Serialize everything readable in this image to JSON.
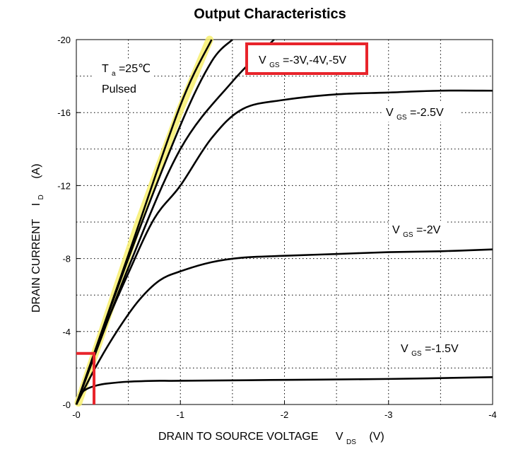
{
  "chart_data": {
    "type": "line",
    "title": "Output Characteristics",
    "xlabel": "DRAIN TO SOURCE VOLTAGE",
    "xlabel_symbol": "V",
    "xlabel_sub": "DS",
    "xlabel_unit": "(V)",
    "ylabel": "DRAIN CURRENT",
    "ylabel_symbol": "I",
    "ylabel_sub": "D",
    "ylabel_unit": "(A)",
    "xlim": [
      0,
      -4
    ],
    "ylim": [
      0,
      -20
    ],
    "x_ticks": [
      0,
      -1,
      -2,
      -3,
      -4
    ],
    "x_tick_labels": [
      "-0",
      "-1",
      "-2",
      "-3",
      "-4"
    ],
    "y_ticks": [
      0,
      -4,
      -8,
      -12,
      -16,
      -20
    ],
    "y_tick_labels": [
      "-0",
      "-4",
      "-8",
      "-12",
      "-16",
      "-20"
    ],
    "grid": "dotted",
    "conditions": {
      "ta_symbol": "T",
      "ta_sub": "a",
      "ta_value": "=25℃",
      "mode": "Pulsed"
    },
    "series": [
      {
        "name": "VGS=-5V",
        "x": [
          0,
          -0.5,
          -1.0,
          -1.3
        ],
        "y": [
          0,
          -8.2,
          -16.4,
          -20.0
        ]
      },
      {
        "name": "VGS=-4V",
        "x": [
          0,
          -0.5,
          -1.0,
          -1.3,
          -1.5
        ],
        "y": [
          0,
          -8.0,
          -15.3,
          -18.8,
          -20.0
        ]
      },
      {
        "name": "VGS=-3V",
        "x": [
          0,
          -0.5,
          -1.0,
          -1.5,
          -1.9
        ],
        "y": [
          0,
          -7.5,
          -14.0,
          -17.7,
          -20.0
        ]
      },
      {
        "name": "VGS=-2.5V",
        "x": [
          0,
          -0.25,
          -0.5,
          -0.75,
          -1.0,
          -1.3,
          -1.6,
          -2.0,
          -2.5,
          -3.0,
          -3.5,
          -4.0
        ],
        "y": [
          0,
          -3.9,
          -7.2,
          -10.2,
          -12.0,
          -14.6,
          -16.2,
          -16.7,
          -17.0,
          -17.1,
          -17.2,
          -17.2
        ]
      },
      {
        "name": "VGS=-2V",
        "x": [
          0,
          -0.2,
          -0.4,
          -0.6,
          -0.8,
          -1.0,
          -1.3,
          -1.6,
          -2.0,
          -2.5,
          -3.0,
          -3.5,
          -4.0
        ],
        "y": [
          0,
          -2.2,
          -4.1,
          -5.7,
          -6.8,
          -7.3,
          -7.8,
          -8.05,
          -8.15,
          -8.25,
          -8.35,
          -8.4,
          -8.5
        ]
      },
      {
        "name": "VGS=-1.5V",
        "x": [
          0,
          -0.05,
          -0.1,
          -0.2,
          -0.3,
          -0.5,
          -0.8,
          -1.0,
          -2.0,
          -3.0,
          -4.0
        ],
        "y": [
          0,
          -0.6,
          -0.85,
          -1.05,
          -1.15,
          -1.25,
          -1.3,
          -1.3,
          -1.35,
          -1.4,
          -1.5
        ]
      }
    ],
    "series_labels": [
      {
        "symbol": "V",
        "sub": "GS",
        "value": "=-3V,-4V,-5V"
      },
      {
        "symbol": "V",
        "sub": "GS",
        "value": "=-2.5V"
      },
      {
        "symbol": "V",
        "sub": "GS",
        "value": "=-2V"
      },
      {
        "symbol": "V",
        "sub": "GS",
        "value": "=-1.5V"
      }
    ],
    "annotations": {
      "highlight_box_color": "#e8242b",
      "highlight_marker_color": "#f7ef6e",
      "operating_point_marker": {
        "x": [
          0,
          -0.17
        ],
        "y": [
          -2.8,
          0
        ]
      }
    },
    "line_color": "#000000"
  }
}
